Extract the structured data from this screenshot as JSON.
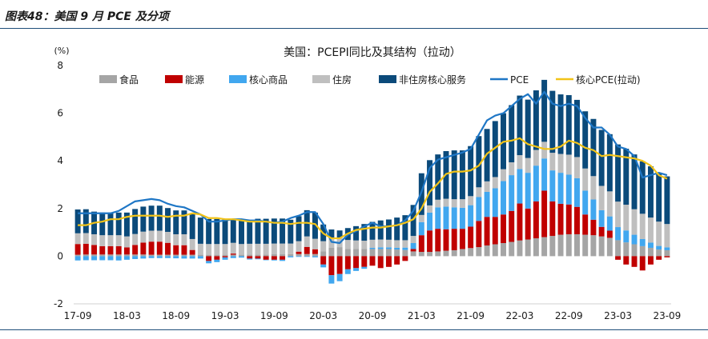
{
  "figure": {
    "caption": "图表48：美国 9 月 PCE 及分项"
  },
  "chart_data": {
    "type": "bar",
    "title": "美国：PCEPI同比及其结构（拉动）",
    "ylabel": "(%)",
    "ylim": [
      -2,
      8
    ],
    "yticks": [
      "-2",
      "0",
      "2",
      "4",
      "6",
      "8"
    ],
    "xtick_labels": [
      "17-09",
      "18-03",
      "18-09",
      "19-03",
      "19-09",
      "20-03",
      "20-09",
      "21-03",
      "21-09",
      "22-03",
      "22-09",
      "23-03",
      "23-09"
    ],
    "x": [
      "17-09",
      "17-10",
      "17-11",
      "17-12",
      "18-01",
      "18-02",
      "18-03",
      "18-04",
      "18-05",
      "18-06",
      "18-07",
      "18-08",
      "18-09",
      "18-10",
      "18-11",
      "18-12",
      "19-01",
      "19-02",
      "19-03",
      "19-04",
      "19-05",
      "19-06",
      "19-07",
      "19-08",
      "19-09",
      "19-10",
      "19-11",
      "19-12",
      "20-01",
      "20-02",
      "20-03",
      "20-04",
      "20-05",
      "20-06",
      "20-07",
      "20-08",
      "20-09",
      "20-10",
      "20-11",
      "20-12",
      "21-01",
      "21-02",
      "21-03",
      "21-04",
      "21-05",
      "21-06",
      "21-07",
      "21-08",
      "21-09",
      "21-10",
      "21-11",
      "21-12",
      "22-01",
      "22-02",
      "22-03",
      "22-04",
      "22-05",
      "22-06",
      "22-07",
      "22-08",
      "22-09",
      "22-10",
      "22-11",
      "22-12",
      "23-01",
      "23-02",
      "23-03",
      "23-04",
      "23-05",
      "23-06",
      "23-07",
      "23-08",
      "23-09"
    ],
    "legend_position": "top",
    "series": [
      {
        "name": "食品",
        "kind": "bar",
        "color": "#a5a5a5",
        "values": [
          0.06,
          0.07,
          0.07,
          0.07,
          0.07,
          0.07,
          0.07,
          0.07,
          0.07,
          0.06,
          0.06,
          0.06,
          0.06,
          0.06,
          0.06,
          0.06,
          0.06,
          0.06,
          0.06,
          0.06,
          0.06,
          0.07,
          0.07,
          0.07,
          0.08,
          0.08,
          0.09,
          0.09,
          0.09,
          0.09,
          0.2,
          0.35,
          0.38,
          0.3,
          0.3,
          0.3,
          0.3,
          0.3,
          0.3,
          0.28,
          0.26,
          0.2,
          0.18,
          0.18,
          0.2,
          0.23,
          0.25,
          0.3,
          0.34,
          0.38,
          0.45,
          0.5,
          0.55,
          0.6,
          0.66,
          0.7,
          0.75,
          0.8,
          0.85,
          0.9,
          0.92,
          0.92,
          0.9,
          0.88,
          0.83,
          0.77,
          0.67,
          0.58,
          0.5,
          0.42,
          0.35,
          0.28,
          0.25
        ]
      },
      {
        "name": "能源",
        "kind": "bar",
        "color": "#c00000",
        "values": [
          0.45,
          0.45,
          0.4,
          0.35,
          0.35,
          0.35,
          0.3,
          0.4,
          0.5,
          0.55,
          0.55,
          0.5,
          0.4,
          0.4,
          0.2,
          0.0,
          -0.2,
          -0.15,
          -0.05,
          0.05,
          0.0,
          -0.1,
          -0.1,
          -0.15,
          -0.15,
          -0.15,
          0.0,
          0.1,
          0.3,
          0.2,
          -0.35,
          -0.8,
          -0.75,
          -0.55,
          -0.5,
          -0.45,
          -0.4,
          -0.5,
          -0.45,
          -0.35,
          -0.2,
          0.1,
          0.7,
          0.9,
          0.95,
          0.9,
          0.9,
          0.85,
          0.9,
          1.1,
          1.2,
          1.15,
          1.2,
          1.3,
          1.55,
          1.3,
          1.55,
          1.95,
          1.45,
          1.3,
          1.25,
          1.15,
          0.85,
          0.65,
          0.4,
          0.3,
          -0.15,
          -0.35,
          -0.45,
          -0.6,
          -0.35,
          -0.15,
          -0.05
        ]
      },
      {
        "name": "核心商品",
        "kind": "bar",
        "color": "#41a7ef",
        "values": [
          -0.18,
          -0.17,
          -0.17,
          -0.17,
          -0.17,
          -0.18,
          -0.15,
          -0.12,
          -0.1,
          -0.08,
          -0.08,
          -0.08,
          -0.09,
          -0.1,
          -0.1,
          -0.1,
          -0.1,
          -0.1,
          -0.1,
          -0.08,
          -0.06,
          -0.04,
          -0.03,
          -0.02,
          -0.03,
          -0.05,
          -0.05,
          -0.03,
          -0.03,
          -0.05,
          -0.12,
          -0.35,
          -0.3,
          -0.2,
          -0.12,
          -0.08,
          0.05,
          0.07,
          0.07,
          0.07,
          0.1,
          0.25,
          0.55,
          0.75,
          0.9,
          0.95,
          0.9,
          0.88,
          0.9,
          1.0,
          1.05,
          1.2,
          1.4,
          1.5,
          1.45,
          1.5,
          1.5,
          1.35,
          1.3,
          1.3,
          1.25,
          1.2,
          1.0,
          0.85,
          0.7,
          0.6,
          0.55,
          0.5,
          0.4,
          0.3,
          0.22,
          0.15,
          0.12
        ]
      },
      {
        "name": "住房",
        "kind": "bar",
        "color": "#bfbfbf",
        "values": [
          0.45,
          0.45,
          0.45,
          0.46,
          0.46,
          0.46,
          0.46,
          0.46,
          0.46,
          0.46,
          0.46,
          0.46,
          0.46,
          0.46,
          0.46,
          0.46,
          0.45,
          0.45,
          0.45,
          0.45,
          0.45,
          0.45,
          0.45,
          0.45,
          0.45,
          0.45,
          0.44,
          0.44,
          0.44,
          0.44,
          0.43,
          0.42,
          0.4,
          0.38,
          0.36,
          0.35,
          0.34,
          0.33,
          0.32,
          0.32,
          0.31,
          0.3,
          0.3,
          0.3,
          0.32,
          0.33,
          0.34,
          0.36,
          0.38,
          0.41,
          0.44,
          0.47,
          0.5,
          0.54,
          0.58,
          0.62,
          0.66,
          0.7,
          0.74,
          0.79,
          0.84,
          0.89,
          0.93,
          0.98,
          1.02,
          1.05,
          1.07,
          1.08,
          1.07,
          1.06,
          1.05,
          1.02,
          0.98
        ]
      },
      {
        "name": "非住房核心服务",
        "kind": "bar",
        "color": "#0b4a7a",
        "values": [
          1.0,
          1.0,
          0.95,
          0.95,
          0.95,
          0.95,
          1.0,
          1.05,
          1.05,
          1.05,
          1.05,
          1.0,
          1.0,
          1.0,
          1.05,
          1.1,
          1.05,
          1.05,
          1.05,
          1.0,
          1.0,
          1.0,
          1.05,
          1.05,
          1.05,
          1.05,
          1.0,
          1.05,
          1.1,
          1.1,
          0.7,
          0.35,
          0.3,
          0.5,
          0.6,
          0.7,
          0.75,
          0.8,
          0.85,
          0.95,
          1.05,
          1.3,
          1.75,
          1.9,
          1.9,
          2.0,
          2.05,
          2.05,
          2.1,
          2.15,
          2.2,
          2.35,
          2.35,
          2.4,
          2.5,
          2.45,
          2.5,
          2.6,
          2.6,
          2.5,
          2.5,
          2.4,
          2.4,
          2.4,
          2.35,
          2.4,
          2.4,
          2.35,
          2.3,
          2.2,
          2.15,
          2.05,
          2.0
        ]
      },
      {
        "name": "PCE",
        "kind": "line",
        "color": "#1f77c6",
        "values": [
          1.8,
          1.8,
          1.8,
          1.8,
          1.8,
          1.9,
          2.1,
          2.3,
          2.35,
          2.4,
          2.35,
          2.2,
          2.1,
          2.05,
          1.9,
          1.75,
          1.45,
          1.45,
          1.5,
          1.55,
          1.55,
          1.5,
          1.5,
          1.45,
          1.4,
          1.45,
          1.6,
          1.7,
          1.85,
          1.85,
          1.35,
          0.6,
          0.55,
          0.9,
          1.05,
          1.25,
          1.4,
          1.25,
          1.25,
          1.3,
          1.5,
          1.9,
          2.7,
          3.7,
          4.05,
          4.15,
          4.25,
          4.35,
          4.5,
          5.1,
          5.7,
          5.9,
          6.0,
          6.3,
          6.6,
          6.8,
          6.4,
          6.9,
          6.4,
          6.3,
          6.4,
          6.3,
          5.8,
          5.4,
          5.4,
          5.1,
          4.6,
          4.5,
          4.2,
          3.3,
          3.4,
          3.5,
          3.4
        ]
      },
      {
        "name": "核心PCE(拉动)",
        "kind": "line",
        "color": "#f2c318",
        "values": [
          1.3,
          1.3,
          1.4,
          1.45,
          1.55,
          1.55,
          1.65,
          1.7,
          1.7,
          1.7,
          1.7,
          1.65,
          1.7,
          1.7,
          1.8,
          1.75,
          1.6,
          1.6,
          1.55,
          1.55,
          1.5,
          1.45,
          1.45,
          1.45,
          1.4,
          1.4,
          1.35,
          1.4,
          1.4,
          1.35,
          0.95,
          0.75,
          0.75,
          0.95,
          1.1,
          1.15,
          1.2,
          1.2,
          1.25,
          1.3,
          1.4,
          1.55,
          2.0,
          2.7,
          3.05,
          3.45,
          3.55,
          3.55,
          3.6,
          3.8,
          4.3,
          4.55,
          4.8,
          4.85,
          4.95,
          4.7,
          4.6,
          4.5,
          4.5,
          4.6,
          4.85,
          4.75,
          4.55,
          4.45,
          4.2,
          4.25,
          4.2,
          4.15,
          4.1,
          4.0,
          3.8,
          3.4,
          3.25
        ]
      }
    ]
  }
}
